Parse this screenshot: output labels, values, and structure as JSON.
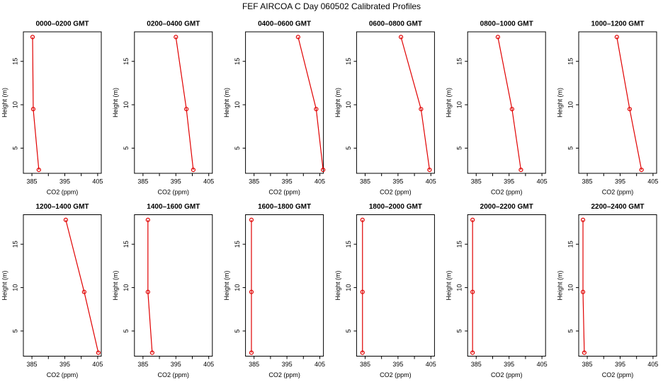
{
  "title": "FEF AIRCOA C  Day 060502  Calibrated Profiles",
  "chart_data": [
    {
      "type": "line",
      "title": "0000–0200 GMT",
      "xlabel": "CO2 (ppm)",
      "ylabel": "Height (m)",
      "color": "#e00000",
      "x": [
        385.2,
        385.4,
        387.1
      ],
      "values": [
        17.8,
        9.5,
        2.5
      ],
      "xlim": [
        382.4,
        406.1
      ],
      "ylim": [
        2.1,
        18.4
      ],
      "xticks": [
        385,
        395,
        405
      ],
      "xminorticks": [
        390,
        400
      ],
      "yticks": [
        5,
        10,
        15
      ]
    },
    {
      "type": "line",
      "title": "0200–0400 GMT",
      "xlabel": "CO2 (ppm)",
      "ylabel": "Height (m)",
      "color": "#e00000",
      "x": [
        395.0,
        398.2,
        400.3
      ],
      "values": [
        17.8,
        9.5,
        2.5
      ],
      "xlim": [
        382.4,
        406.1
      ],
      "ylim": [
        2.1,
        18.4
      ],
      "xticks": [
        385,
        395,
        405
      ],
      "xminorticks": [
        390,
        400
      ],
      "yticks": [
        5,
        10,
        15
      ]
    },
    {
      "type": "line",
      "title": "0400–0600 GMT",
      "xlabel": "CO2 (ppm)",
      "ylabel": "Height (m)",
      "color": "#e00000",
      "x": [
        398.4,
        403.9,
        406.0
      ],
      "values": [
        17.8,
        9.5,
        2.5
      ],
      "xlim": [
        382.4,
        406.1
      ],
      "ylim": [
        2.1,
        18.4
      ],
      "xticks": [
        385,
        395,
        405
      ],
      "xminorticks": [
        390,
        400
      ],
      "yticks": [
        5,
        10,
        15
      ]
    },
    {
      "type": "line",
      "title": "0600–0800 GMT",
      "xlabel": "CO2 (ppm)",
      "ylabel": "Height (m)",
      "color": "#e00000",
      "x": [
        395.9,
        402.0,
        404.6
      ],
      "values": [
        17.8,
        9.5,
        2.5
      ],
      "xlim": [
        382.4,
        406.1
      ],
      "ylim": [
        2.1,
        18.4
      ],
      "xticks": [
        385,
        395,
        405
      ],
      "xminorticks": [
        390,
        400
      ],
      "yticks": [
        5,
        10,
        15
      ]
    },
    {
      "type": "line",
      "title": "0800–1000 GMT",
      "xlabel": "CO2 (ppm)",
      "ylabel": "Height (m)",
      "color": "#e00000",
      "x": [
        391.6,
        395.9,
        398.6
      ],
      "values": [
        17.8,
        9.5,
        2.5
      ],
      "xlim": [
        382.4,
        406.1
      ],
      "ylim": [
        2.1,
        18.4
      ],
      "xticks": [
        385,
        395,
        405
      ],
      "xminorticks": [
        390,
        400
      ],
      "yticks": [
        5,
        10,
        15
      ]
    },
    {
      "type": "line",
      "title": "1000–1200 GMT",
      "xlabel": "CO2 (ppm)",
      "ylabel": "Height (m)",
      "color": "#e00000",
      "x": [
        394.0,
        397.9,
        401.5
      ],
      "values": [
        17.8,
        9.5,
        2.5
      ],
      "xlim": [
        382.4,
        406.1
      ],
      "ylim": [
        2.1,
        18.4
      ],
      "xticks": [
        385,
        395,
        405
      ],
      "xminorticks": [
        390,
        400
      ],
      "yticks": [
        5,
        10,
        15
      ]
    },
    {
      "type": "line",
      "title": "1200–1400 GMT",
      "xlabel": "CO2 (ppm)",
      "ylabel": "Height (m)",
      "color": "#e00000",
      "x": [
        395.3,
        400.9,
        405.2
      ],
      "values": [
        17.8,
        9.5,
        2.5
      ],
      "xlim": [
        382.4,
        406.1
      ],
      "ylim": [
        2.1,
        18.4
      ],
      "xticks": [
        385,
        395,
        405
      ],
      "xminorticks": [
        390,
        400
      ],
      "yticks": [
        5,
        10,
        15
      ]
    },
    {
      "type": "line",
      "title": "1400–1600 GMT",
      "xlabel": "CO2 (ppm)",
      "ylabel": "Height (m)",
      "color": "#e00000",
      "x": [
        386.5,
        386.5,
        387.8
      ],
      "values": [
        17.8,
        9.5,
        2.5
      ],
      "xlim": [
        382.4,
        406.1
      ],
      "ylim": [
        2.1,
        18.4
      ],
      "xticks": [
        385,
        395,
        405
      ],
      "xminorticks": [
        390,
        400
      ],
      "yticks": [
        5,
        10,
        15
      ]
    },
    {
      "type": "line",
      "title": "1600–1800 GMT",
      "xlabel": "CO2 (ppm)",
      "ylabel": "Height (m)",
      "color": "#e00000",
      "x": [
        384.2,
        384.2,
        384.2
      ],
      "values": [
        17.8,
        9.5,
        2.5
      ],
      "xlim": [
        382.4,
        406.1
      ],
      "ylim": [
        2.1,
        18.4
      ],
      "xticks": [
        385,
        395,
        405
      ],
      "xminorticks": [
        390,
        400
      ],
      "yticks": [
        5,
        10,
        15
      ]
    },
    {
      "type": "line",
      "title": "1800–2000 GMT",
      "xlabel": "CO2 (ppm)",
      "ylabel": "Height (m)",
      "color": "#e00000",
      "x": [
        384.2,
        384.2,
        384.2
      ],
      "values": [
        17.8,
        9.5,
        2.5
      ],
      "xlim": [
        382.4,
        406.1
      ],
      "ylim": [
        2.1,
        18.4
      ],
      "xticks": [
        385,
        395,
        405
      ],
      "xminorticks": [
        390,
        400
      ],
      "yticks": [
        5,
        10,
        15
      ]
    },
    {
      "type": "line",
      "title": "2000–2200 GMT",
      "xlabel": "CO2 (ppm)",
      "ylabel": "Height (m)",
      "color": "#e00000",
      "x": [
        383.9,
        383.9,
        383.9
      ],
      "values": [
        17.8,
        9.5,
        2.5
      ],
      "xlim": [
        382.4,
        406.1
      ],
      "ylim": [
        2.1,
        18.4
      ],
      "xticks": [
        385,
        395,
        405
      ],
      "xminorticks": [
        390,
        400
      ],
      "yticks": [
        5,
        10,
        15
      ]
    },
    {
      "type": "line",
      "title": "2200–2400 GMT",
      "xlabel": "CO2 (ppm)",
      "ylabel": "Height (m)",
      "color": "#e00000",
      "x": [
        383.7,
        383.7,
        384.1
      ],
      "values": [
        17.8,
        9.5,
        2.5
      ],
      "xlim": [
        382.4,
        406.1
      ],
      "ylim": [
        2.1,
        18.4
      ],
      "xticks": [
        385,
        395,
        405
      ],
      "xminorticks": [
        390,
        400
      ],
      "yticks": [
        5,
        10,
        15
      ]
    }
  ]
}
